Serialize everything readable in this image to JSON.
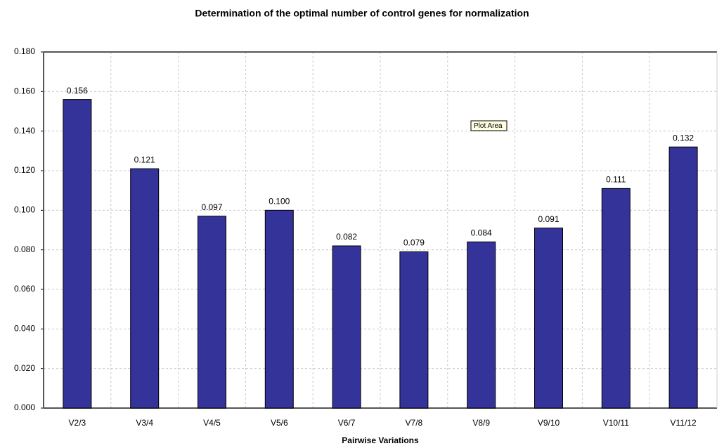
{
  "chart_data": {
    "type": "bar",
    "title": "Determination of the optimal number of control genes for normalization",
    "x_label": "Pairwise Variations",
    "annotation": "Plot Area",
    "categories": [
      "V2/3",
      "V3/4",
      "V4/5",
      "V5/6",
      "V6/7",
      "V7/8",
      "V8/9",
      "V9/10",
      "V10/11",
      "V11/12"
    ],
    "values": [
      0.156,
      0.121,
      0.097,
      0.1,
      0.082,
      0.079,
      0.084,
      0.091,
      0.111,
      0.132
    ],
    "value_labels": [
      "0.156",
      "0.121",
      "0.097",
      "0.100",
      "0.082",
      "0.079",
      "0.084",
      "0.091",
      "0.111",
      "0.132"
    ],
    "color": "#333399",
    "ylim": [
      0,
      0.18
    ],
    "yticks": [
      {
        "value": 0,
        "label": "0.000"
      },
      {
        "value": 0.02,
        "label": "0.020"
      },
      {
        "value": 0.04,
        "label": "0.040"
      },
      {
        "value": 0.06,
        "label": "0.060"
      },
      {
        "value": 0.08,
        "label": "0.080"
      },
      {
        "value": 0.1,
        "label": "0.100"
      },
      {
        "value": 0.12,
        "label": "0.120"
      },
      {
        "value": 0.14,
        "label": "0.140"
      },
      {
        "value": 0.16,
        "label": "0.160"
      },
      {
        "value": 0.18,
        "label": "0.180"
      }
    ],
    "grid": true
  }
}
